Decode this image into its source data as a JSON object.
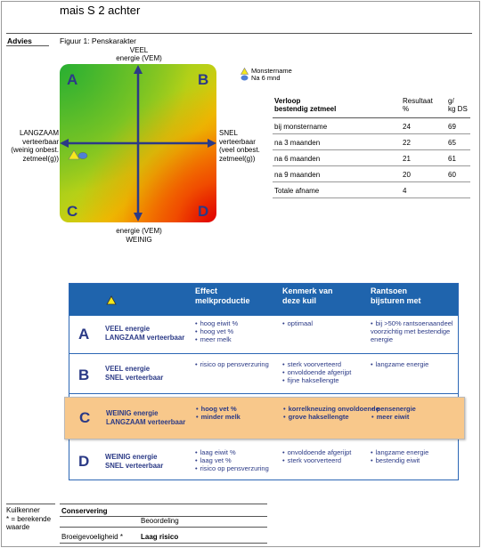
{
  "title": "mais S 2 achter",
  "section_label": "Advies",
  "figure": {
    "caption": "Figuur 1: Penskarakter",
    "top_label": [
      "VEEL",
      "energie (VEM)"
    ],
    "bottom_label": [
      "energie (VEM)",
      "WEINIG"
    ],
    "left_label": [
      "LANGZAAM",
      "verteerbaar",
      "(weinig onbest.",
      "zetmeel(g))"
    ],
    "right_label": [
      "SNEL",
      "verteerbaar",
      "(veel onbest.",
      "zetmeel(g))"
    ],
    "quadrants": [
      "A",
      "B",
      "C",
      "D"
    ],
    "legend": [
      {
        "label": "Monstername",
        "symbol": "triangle-icon",
        "color": "#f5e81c"
      },
      {
        "label": "Na 6 mnd",
        "symbol": "ellipse-icon",
        "color": "#4f7fd6"
      }
    ]
  },
  "verloop": {
    "header": {
      "col1": [
        "Verloop",
        "bestendig zetmeel"
      ],
      "col2": [
        "Resultaat",
        "%"
      ],
      "col3": [
        "g/",
        "kg DS"
      ]
    },
    "rows": [
      {
        "label": "bij monstername",
        "pct": "24",
        "g": "69"
      },
      {
        "label": "na 3 maanden",
        "pct": "22",
        "g": "65"
      },
      {
        "label": "na 6 maanden",
        "pct": "21",
        "g": "61"
      },
      {
        "label": "na 9 maanden",
        "pct": "20",
        "g": "60"
      },
      {
        "label": "Totale afname",
        "pct": "4",
        "g": ""
      }
    ]
  },
  "feed_table": {
    "headers": {
      "effect": [
        "Effect",
        "melkproductie"
      ],
      "kenmerk": [
        "Kenmerk van",
        "deze kuil"
      ],
      "rantsoen": [
        "Rantsoen",
        "bijsturen met"
      ]
    },
    "header_icon": "triangle-icon",
    "rows": [
      {
        "letter": "A",
        "desc": [
          "VEEL energie",
          "LANGZAAM verteerbaar"
        ],
        "effect": [
          "hoog eiwit %",
          "hoog vet %",
          "meer melk"
        ],
        "kenmerk": [
          "optimaal"
        ],
        "rantsoen": [
          "bij >50% rantsoenaandeel voorzichtig met bestendige energie"
        ]
      },
      {
        "letter": "B",
        "desc": [
          "VEEL energie",
          "SNEL verteerbaar"
        ],
        "effect": [
          "risico op pensverzuring"
        ],
        "kenmerk": [
          "sterk voorverteerd",
          "onvoldoende afgerijpt",
          "fijne haksellengte"
        ],
        "rantsoen": [
          "langzame energie"
        ]
      },
      {
        "letter": "C",
        "desc": [
          "WEINIG energie",
          "LANGZAAM verteerbaar"
        ],
        "effect": [
          "hoog vet %",
          "minder melk"
        ],
        "kenmerk": [
          "korrelkneuzing onvoldoende",
          "grove haksellengte"
        ],
        "rantsoen": [
          "pensenergie",
          "meer eiwit"
        ]
      },
      {
        "letter": "D",
        "desc": [
          "WEINIG energie",
          "SNEL verteerbaar"
        ],
        "effect": [
          "laag eiwit %",
          "laag vet %",
          "risico op pensverzuring"
        ],
        "kenmerk": [
          "onvoldoende afgerijpt",
          "sterk voorverteerd"
        ],
        "rantsoen": [
          "langzame energie",
          "bestendig eiwit"
        ]
      }
    ]
  },
  "bottom": {
    "kuilkenner": [
      "Kuilkenner",
      "* = berekende",
      "waarde"
    ],
    "conservering": "Conservering",
    "beoordeling": "Beoordeling",
    "broeigevoeligheid": "Broeigevoeligheid *",
    "laag_risico": "Laag risico"
  }
}
